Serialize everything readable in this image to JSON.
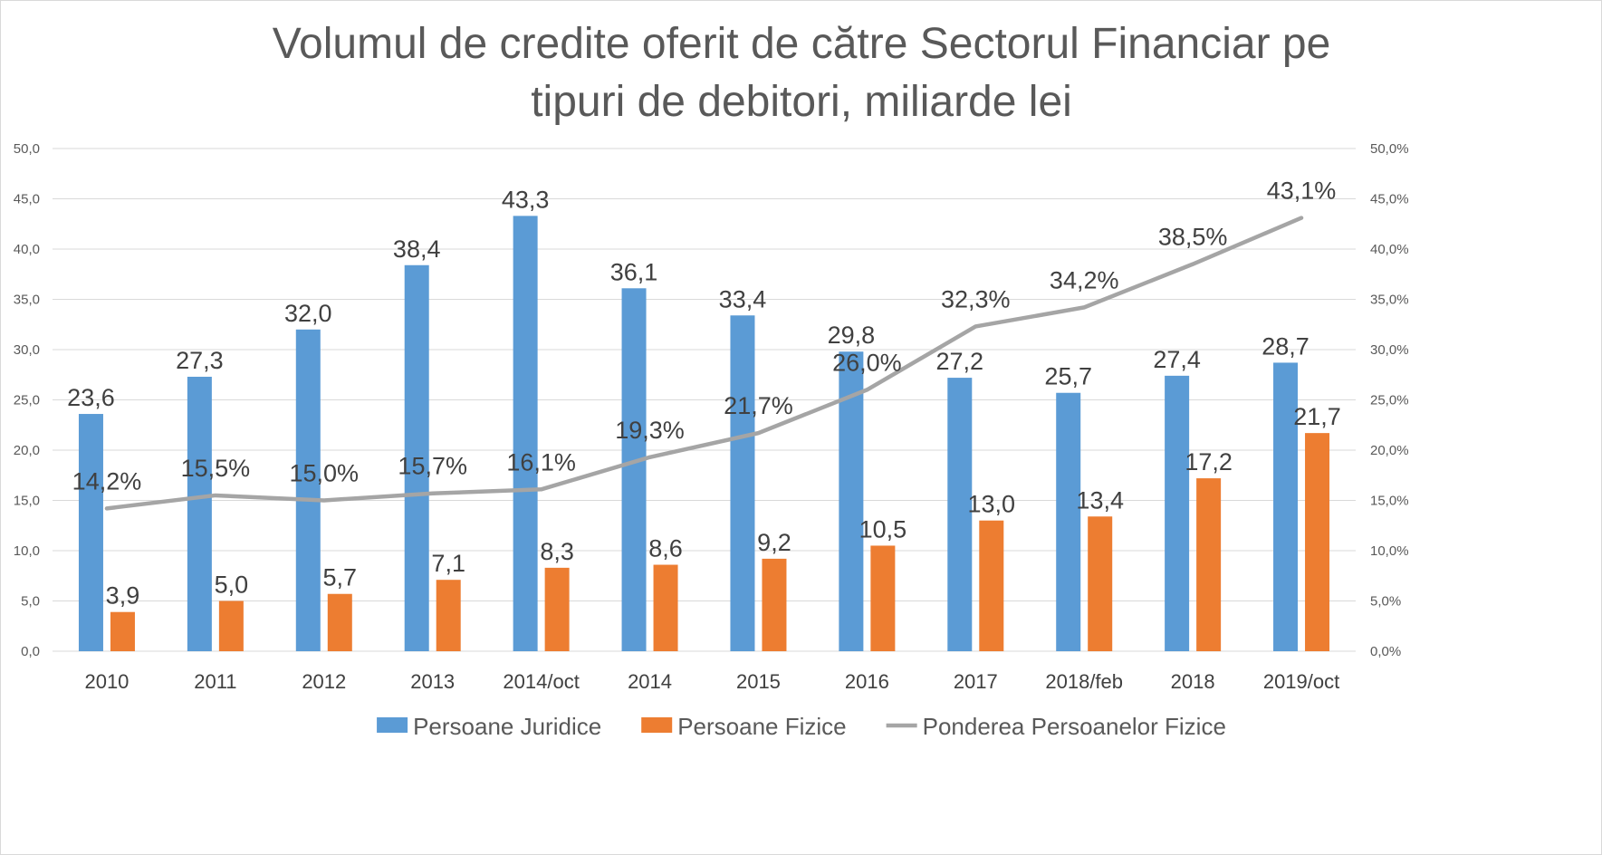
{
  "chart_data": {
    "type": "bar",
    "title": "Volumul de credite oferit de către Sectorul Financiar pe tipuri de debitori, miliarde lei",
    "title_lines": [
      "Volumul de credite oferit de către Sectorul Financiar pe",
      "tipuri de debitori, miliarde lei"
    ],
    "categories": [
      "2010",
      "2011",
      "2012",
      "2013",
      "2014/oct",
      "2014",
      "2015",
      "2016",
      "2017",
      "2018/feb",
      "2018",
      "2019/oct"
    ],
    "series": [
      {
        "name": "Persoane Juridice",
        "type": "bar",
        "axis": "left",
        "color": "#5b9bd5",
        "values": [
          23.6,
          27.3,
          32.0,
          38.4,
          43.3,
          36.1,
          33.4,
          29.8,
          27.2,
          25.7,
          27.4,
          28.7
        ],
        "labels": [
          "23,6",
          "27,3",
          "32,0",
          "38,4",
          "43,3",
          "36,1",
          "33,4",
          "29,8",
          "27,2",
          "25,7",
          "27,4",
          "28,7"
        ]
      },
      {
        "name": "Persoane Fizice",
        "type": "bar",
        "axis": "left",
        "color": "#ed7d31",
        "values": [
          3.9,
          5.0,
          5.7,
          7.1,
          8.3,
          8.6,
          9.2,
          10.5,
          13.0,
          13.4,
          17.2,
          21.7
        ],
        "labels": [
          "3,9",
          "5,0",
          "5,7",
          "7,1",
          "8,3",
          "8,6",
          "9,2",
          "10,5",
          "13,0",
          "13,4",
          "17,2",
          "21,7"
        ]
      },
      {
        "name": "Ponderea Persoanelor Fizice",
        "type": "line",
        "axis": "right",
        "color": "#a5a5a5",
        "values": [
          14.2,
          15.5,
          15.0,
          15.7,
          16.1,
          19.3,
          21.7,
          26.0,
          32.3,
          34.2,
          38.5,
          43.1
        ],
        "labels": [
          "14,2%",
          "15,5%",
          "15,0%",
          "15,7%",
          "16,1%",
          "19,3%",
          "21,7%",
          "26,0%",
          "32,3%",
          "34,2%",
          "38,5%",
          "43,1%"
        ]
      }
    ],
    "y_left": {
      "min": 0,
      "max": 50,
      "step": 5,
      "tick_labels": [
        "0,0",
        "5,0",
        "10,0",
        "15,0",
        "20,0",
        "25,0",
        "30,0",
        "35,0",
        "40,0",
        "45,0",
        "50,0"
      ]
    },
    "y_right": {
      "min": 0,
      "max": 50,
      "step": 5,
      "unit": "%",
      "tick_labels": [
        "0,0%",
        "5,0%",
        "10,0%",
        "15,0%",
        "20,0%",
        "25,0%",
        "30,0%",
        "35,0%",
        "40,0%",
        "45,0%",
        "50,0%"
      ]
    },
    "xlabel": "",
    "ylabel": "",
    "grid": true,
    "legend_position": "bottom",
    "gridline_color": "#d9d9d9",
    "text_color": "#595959"
  }
}
